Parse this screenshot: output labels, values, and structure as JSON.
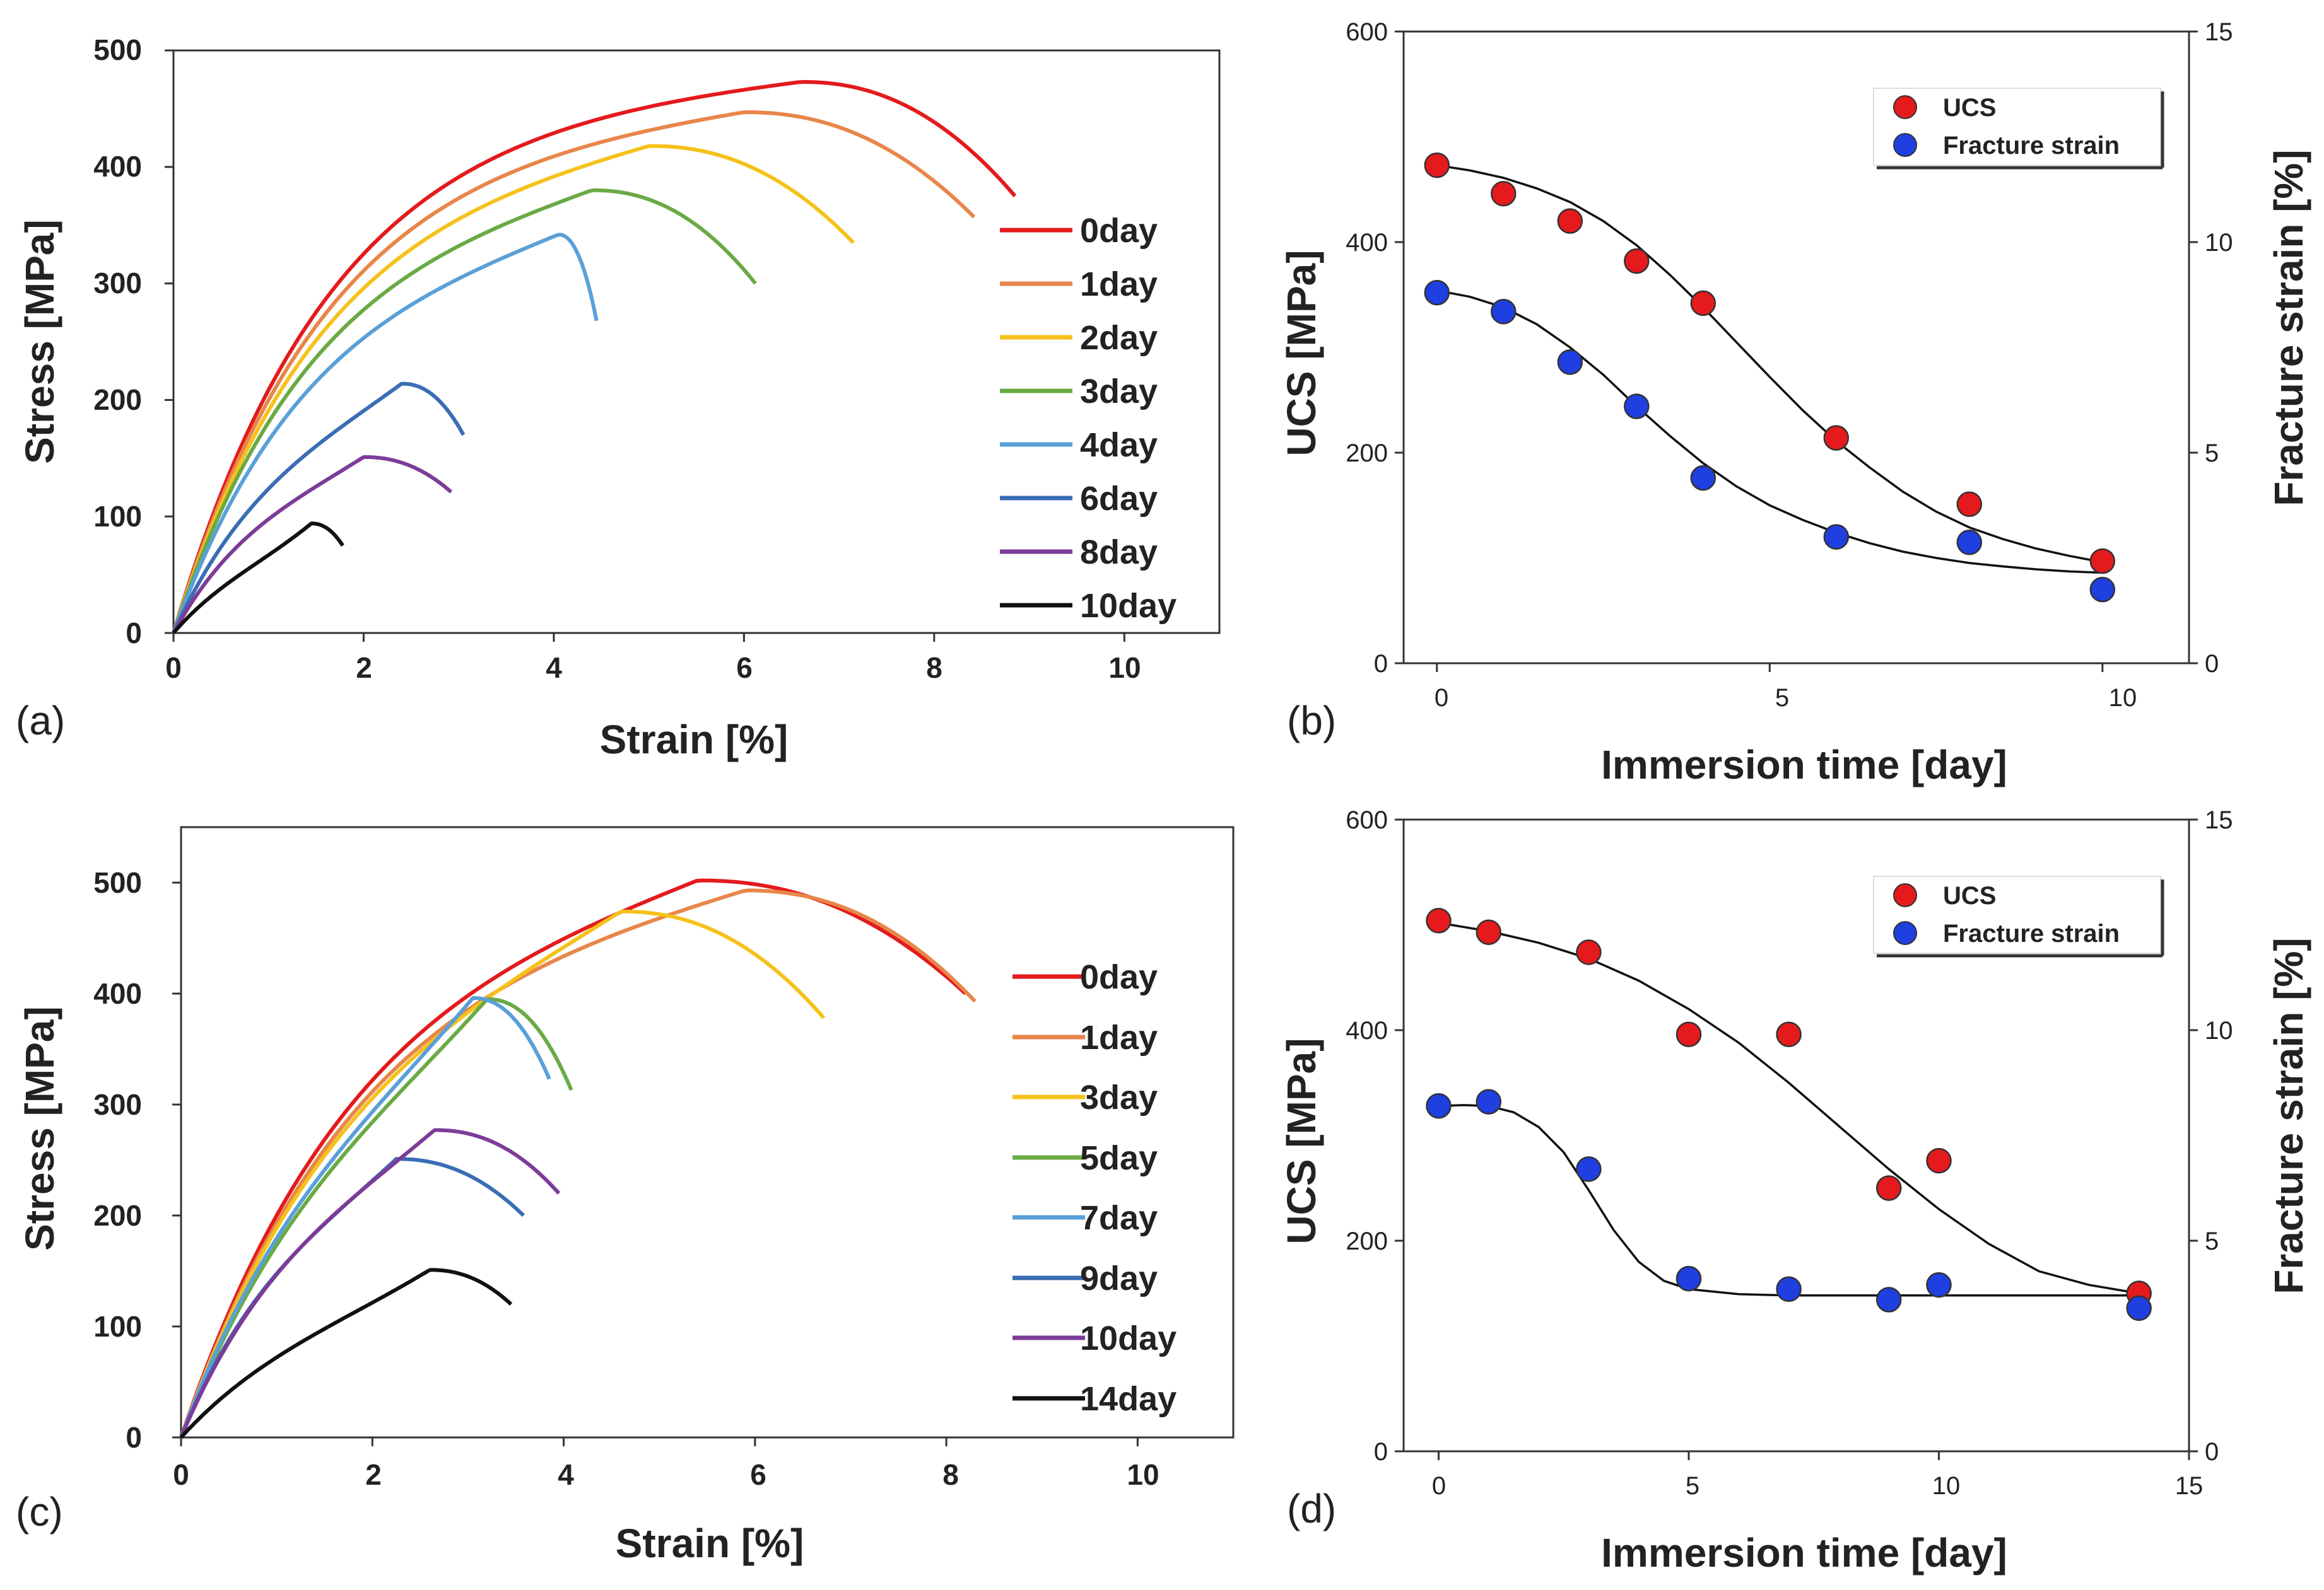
{
  "chart_data": [
    {
      "type": "line",
      "panel_label": "(a)",
      "xlabel": "Strain [%]",
      "ylabel": "Stress [MPa]",
      "xlim": [
        0,
        11
      ],
      "ylim": [
        0,
        500
      ],
      "xticks": [
        0,
        2,
        4,
        6,
        8,
        10
      ],
      "yticks": [
        0,
        100,
        200,
        300,
        400,
        500
      ],
      "series": [
        {
          "name": "0day",
          "color": "#e41a1c",
          "peak_x": 6.6,
          "peak_y": 473,
          "end_x": 8.85,
          "end_y": 375,
          "slope": 275
        },
        {
          "name": "1day",
          "color": "#e8864a",
          "peak_x": 6.0,
          "peak_y": 447,
          "end_x": 8.42,
          "end_y": 357,
          "slope": 265
        },
        {
          "name": "2day",
          "color": "#f5c21b",
          "peak_x": 5.0,
          "peak_y": 418,
          "end_x": 7.15,
          "end_y": 335,
          "slope": 255
        },
        {
          "name": "3day",
          "color": "#6aaa45",
          "peak_x": 4.4,
          "peak_y": 380,
          "end_x": 6.12,
          "end_y": 300,
          "slope": 245
        },
        {
          "name": "4day",
          "color": "#5aa0d8",
          "peak_x": 4.05,
          "peak_y": 342,
          "end_x": 4.45,
          "end_y": 268,
          "slope": 225
        },
        {
          "name": "6day",
          "color": "#3a6db5",
          "peak_x": 2.4,
          "peak_y": 214,
          "end_x": 3.05,
          "end_y": 170,
          "slope": 180
        },
        {
          "name": "8day",
          "color": "#7d3c98",
          "peak_x": 2.0,
          "peak_y": 151,
          "end_x": 2.92,
          "end_y": 121,
          "slope": 150
        },
        {
          "name": "10day",
          "color": "#111111",
          "peak_x": 1.45,
          "peak_y": 94,
          "end_x": 1.78,
          "end_y": 75,
          "slope": 95
        }
      ]
    },
    {
      "type": "scatter",
      "panel_label": "(b)",
      "xlabel": "Immersion time [day]",
      "ylabel": "UCS [MPa]",
      "y2label": "Fracture strain [%]",
      "xlim": [
        -0.5,
        11.3
      ],
      "ylim": [
        0,
        600
      ],
      "y2lim": [
        0,
        15
      ],
      "xticks": [
        0,
        5,
        10
      ],
      "yticks": [
        0,
        200,
        400,
        600
      ],
      "y2ticks": [
        0,
        5,
        10,
        15
      ],
      "series": [
        {
          "name": "UCS",
          "color": "#e41a1c",
          "axis": "left",
          "x": [
            0,
            1,
            2,
            3,
            4,
            6,
            8,
            10
          ],
          "y": [
            473,
            446,
            420,
            382,
            342,
            214,
            151,
            97
          ],
          "fit": {
            "x": [
              0,
              0.5,
              1,
              1.5,
              2,
              2.5,
              3,
              3.5,
              4,
              4.5,
              5,
              5.5,
              6,
              6.5,
              7,
              7.5,
              8,
              8.5,
              9,
              9.5,
              10
            ],
            "y": [
              473,
              468,
              461,
              451,
              438,
              420,
              397,
              369,
              338,
              305,
              272,
              240,
              211,
              186,
              163,
              144,
              129,
              118,
              109,
              102,
              96
            ]
          }
        },
        {
          "name": "Fracture strain",
          "color": "#1f3fe0",
          "axis": "right",
          "x": [
            0,
            1,
            2,
            3,
            4,
            6,
            8,
            10
          ],
          "y": [
            8.8,
            8.35,
            7.15,
            6.1,
            4.4,
            3.0,
            2.87,
            1.75
          ],
          "fit": {
            "x": [
              0,
              0.5,
              1,
              1.5,
              2,
              2.5,
              3,
              3.5,
              4,
              4.5,
              5,
              5.5,
              6,
              6.5,
              7,
              7.5,
              8,
              8.5,
              9,
              9.5,
              10
            ],
            "y": [
              8.85,
              8.7,
              8.45,
              8.05,
              7.5,
              6.85,
              6.1,
              5.4,
              4.75,
              4.2,
              3.75,
              3.4,
              3.1,
              2.85,
              2.65,
              2.5,
              2.38,
              2.3,
              2.23,
              2.18,
              2.15
            ]
          }
        }
      ]
    },
    {
      "type": "line",
      "panel_label": "(c)",
      "xlabel": "Strain [%]",
      "ylabel": "Stress [MPa]",
      "xlim": [
        0,
        11
      ],
      "ylim": [
        0,
        550
      ],
      "xticks": [
        0,
        2,
        4,
        6,
        8,
        10
      ],
      "yticks": [
        0,
        100,
        200,
        300,
        400,
        500
      ],
      "series": [
        {
          "name": "0day",
          "color": "#e41a1c",
          "peak_x": 5.4,
          "peak_y": 502,
          "end_x": 8.2,
          "end_y": 400,
          "slope": 255
        },
        {
          "name": "1day",
          "color": "#e8864a",
          "peak_x": 5.9,
          "peak_y": 493,
          "end_x": 8.3,
          "end_y": 393,
          "slope": 245
        },
        {
          "name": "3day",
          "color": "#f5c21b",
          "peak_x": 4.6,
          "peak_y": 474,
          "end_x": 6.72,
          "end_y": 378,
          "slope": 240
        },
        {
          "name": "5day",
          "color": "#6aaa45",
          "peak_x": 3.2,
          "peak_y": 395,
          "end_x": 4.08,
          "end_y": 313,
          "slope": 225
        },
        {
          "name": "7day",
          "color": "#5aa0d8",
          "peak_x": 3.05,
          "peak_y": 396,
          "end_x": 3.85,
          "end_y": 323,
          "slope": 235
        },
        {
          "name": "9day",
          "color": "#3a6db5",
          "peak_x": 2.25,
          "peak_y": 251,
          "end_x": 3.58,
          "end_y": 200,
          "slope": 215
        },
        {
          "name": "10day",
          "color": "#7d3c98",
          "peak_x": 2.65,
          "peak_y": 277,
          "end_x": 3.95,
          "end_y": 220,
          "slope": 205
        },
        {
          "name": "14day",
          "color": "#111111",
          "peak_x": 2.6,
          "peak_y": 151,
          "end_x": 3.45,
          "end_y": 120,
          "slope": 95
        }
      ]
    },
    {
      "type": "scatter",
      "panel_label": "(d)",
      "xlabel": "Immersion time [day]",
      "ylabel": "UCS [MPa]",
      "y2label": "Fracture strain [%]",
      "xlim": [
        -0.7,
        15
      ],
      "ylim": [
        0,
        600
      ],
      "y2lim": [
        0,
        15
      ],
      "xticks": [
        0,
        5,
        10,
        15
      ],
      "yticks": [
        0,
        200,
        400,
        600
      ],
      "y2ticks": [
        0,
        5,
        10,
        15
      ],
      "series": [
        {
          "name": "UCS",
          "color": "#e41a1c",
          "axis": "left",
          "x": [
            0,
            1,
            3,
            5,
            7,
            9,
            10,
            14
          ],
          "y": [
            504,
            493,
            474,
            396,
            396,
            250,
            276,
            150
          ],
          "fit": {
            "x": [
              0,
              1,
              2,
              3,
              4,
              5,
              6,
              7,
              8,
              9,
              10,
              11,
              12,
              13,
              14
            ],
            "y": [
              502,
              494,
              483,
              468,
              447,
              420,
              388,
              350,
              309,
              268,
              230,
              197,
              171,
              158,
              150
            ]
          }
        },
        {
          "name": "Fracture strain",
          "color": "#1f3fe0",
          "axis": "right",
          "x": [
            0,
            1,
            3,
            5,
            7,
            9,
            10,
            14
          ],
          "y": [
            8.2,
            8.3,
            6.7,
            4.1,
            3.85,
            3.6,
            3.95,
            3.4
          ],
          "fit": {
            "x": [
              0,
              0.5,
              1,
              1.5,
              2,
              2.5,
              3,
              3.5,
              4,
              4.5,
              5,
              6,
              7,
              8,
              9,
              10,
              11,
              12,
              13,
              14
            ],
            "y": [
              8.2,
              8.22,
              8.2,
              8.05,
              7.7,
              7.1,
              6.2,
              5.25,
              4.5,
              4.05,
              3.85,
              3.73,
              3.7,
              3.7,
              3.7,
              3.7,
              3.7,
              3.7,
              3.7,
              3.7
            ]
          }
        }
      ]
    }
  ]
}
